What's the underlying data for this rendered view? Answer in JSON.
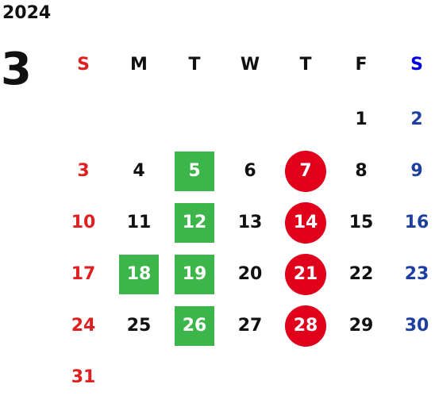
{
  "header": {
    "year": "2024",
    "month": "3"
  },
  "colors": {
    "text": "#111111",
    "sunday": "#e02020",
    "saturday": "#1e3fa0",
    "saturday_header": "#0000e0",
    "green_highlight": "#3cb54a",
    "red_highlight": "#e0001c",
    "highlight_text": "#ffffff"
  },
  "weekdays": [
    {
      "label": "S",
      "kind": "sunday"
    },
    {
      "label": "M",
      "kind": "weekday"
    },
    {
      "label": "T",
      "kind": "weekday"
    },
    {
      "label": "W",
      "kind": "weekday"
    },
    {
      "label": "T",
      "kind": "weekday"
    },
    {
      "label": "F",
      "kind": "weekday"
    },
    {
      "label": "S",
      "kind": "saturday"
    }
  ],
  "first_weekday_index": 5,
  "days": [
    {
      "day": "1"
    },
    {
      "day": "2"
    },
    {
      "day": "3"
    },
    {
      "day": "4"
    },
    {
      "day": "5",
      "highlight": "green"
    },
    {
      "day": "6"
    },
    {
      "day": "7",
      "highlight": "red"
    },
    {
      "day": "8"
    },
    {
      "day": "9"
    },
    {
      "day": "10"
    },
    {
      "day": "11"
    },
    {
      "day": "12",
      "highlight": "green"
    },
    {
      "day": "13"
    },
    {
      "day": "14",
      "highlight": "red"
    },
    {
      "day": "15"
    },
    {
      "day": "16"
    },
    {
      "day": "17"
    },
    {
      "day": "18",
      "highlight": "green"
    },
    {
      "day": "19",
      "highlight": "green"
    },
    {
      "day": "20"
    },
    {
      "day": "21",
      "highlight": "red"
    },
    {
      "day": "22"
    },
    {
      "day": "23"
    },
    {
      "day": "24"
    },
    {
      "day": "25"
    },
    {
      "day": "26",
      "highlight": "green"
    },
    {
      "day": "27"
    },
    {
      "day": "28",
      "highlight": "red"
    },
    {
      "day": "29"
    },
    {
      "day": "30"
    },
    {
      "day": "31"
    }
  ]
}
